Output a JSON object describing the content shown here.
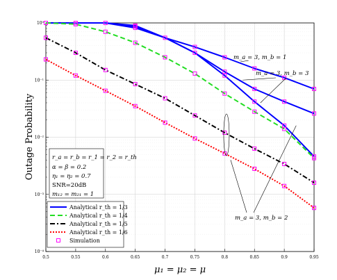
{
  "chart_data": {
    "type": "line",
    "title": "",
    "xlabel": "μ₁ = μ₂ = μ",
    "ylabel": "Outage Probability",
    "yscale": "log",
    "xlim": [
      0.5,
      0.95
    ],
    "ylim": [
      0.0001,
      1
    ],
    "grid": true,
    "legend_position": "bottom-left",
    "x_ticks": [
      "0.5",
      "0.55",
      "0.6",
      "0.65",
      "0.7",
      "0.75",
      "0.8",
      "0.85",
      "0.9",
      "0.95"
    ],
    "y_ticks": [
      "10⁻⁴",
      "10⁻³",
      "10⁻²",
      "10⁻¹",
      "10⁰"
    ],
    "series": [
      {
        "name": "Analytical r_th = 1/3",
        "color": "#0000ff",
        "dash": "solid",
        "curves": [
          {
            "x": [
              0.5,
              0.55,
              0.6,
              0.65,
              0.7,
              0.75,
              0.8,
              0.85,
              0.9,
              0.95
            ],
            "y": [
              1,
              1,
              1,
              0.9,
              0.55,
              0.38,
              0.25,
              0.16,
              0.11,
              0.07
            ]
          },
          {
            "x": [
              0.5,
              0.55,
              0.6,
              0.65,
              0.7,
              0.75,
              0.8,
              0.85,
              0.9,
              0.95
            ],
            "y": [
              1,
              1,
              1,
              0.87,
              0.55,
              0.3,
              0.14,
              0.07,
              0.042,
              0.026
            ]
          },
          {
            "x": [
              0.5,
              0.55,
              0.6,
              0.65,
              0.7,
              0.75,
              0.8,
              0.85,
              0.9,
              0.95
            ],
            "y": [
              1,
              1,
              1,
              0.82,
              0.55,
              0.3,
              0.12,
              0.042,
              0.016,
              0.0046
            ]
          }
        ]
      },
      {
        "name": "Analytical r_th = 1/4",
        "color": "#22dd22",
        "dash": "dashed",
        "curves": [
          {
            "x": [
              0.5,
              0.55,
              0.6,
              0.65,
              0.7,
              0.75,
              0.8,
              0.85,
              0.9,
              0.95
            ],
            "y": [
              1,
              0.95,
              0.7,
              0.45,
              0.25,
              0.13,
              0.058,
              0.028,
              0.014,
              0.0043
            ]
          }
        ]
      },
      {
        "name": "Analytical r_th = 1/5",
        "color": "#000000",
        "dash": "dashdot",
        "curves": [
          {
            "x": [
              0.5,
              0.55,
              0.6,
              0.65,
              0.7,
              0.75,
              0.8,
              0.85,
              0.9,
              0.95
            ],
            "y": [
              0.55,
              0.3,
              0.15,
              0.085,
              0.048,
              0.024,
              0.012,
              0.0063,
              0.0034,
              0.0016
            ]
          }
        ]
      },
      {
        "name": "Analytical r_th = 1/6",
        "color": "#ff0000",
        "dash": "dotted",
        "curves": [
          {
            "x": [
              0.5,
              0.55,
              0.6,
              0.65,
              0.7,
              0.75,
              0.8,
              0.85,
              0.9,
              0.95
            ],
            "y": [
              0.23,
              0.12,
              0.065,
              0.035,
              0.018,
              0.0095,
              0.0052,
              0.0028,
              0.0014,
              0.00058
            ]
          }
        ]
      },
      {
        "name": "Simulation",
        "color": "#ff00ff",
        "marker": "square",
        "points": [
          [
            0.5,
            1
          ],
          [
            0.55,
            1
          ],
          [
            0.6,
            1
          ],
          [
            0.65,
            0.9
          ],
          [
            0.65,
            0.87
          ],
          [
            0.65,
            0.82
          ],
          [
            0.7,
            0.55
          ],
          [
            0.75,
            0.38
          ],
          [
            0.75,
            0.3
          ],
          [
            0.8,
            0.25
          ],
          [
            0.8,
            0.14
          ],
          [
            0.8,
            0.12
          ],
          [
            0.85,
            0.16
          ],
          [
            0.85,
            0.07
          ],
          [
            0.85,
            0.042
          ],
          [
            0.9,
            0.11
          ],
          [
            0.9,
            0.042
          ],
          [
            0.9,
            0.016
          ],
          [
            0.95,
            0.07
          ],
          [
            0.95,
            0.026
          ],
          [
            0.95,
            0.0046
          ],
          [
            0.5,
            1
          ],
          [
            0.55,
            0.95
          ],
          [
            0.6,
            0.7
          ],
          [
            0.65,
            0.45
          ],
          [
            0.7,
            0.25
          ],
          [
            0.75,
            0.13
          ],
          [
            0.8,
            0.058
          ],
          [
            0.85,
            0.028
          ],
          [
            0.9,
            0.014
          ],
          [
            0.95,
            0.0043
          ],
          [
            0.5,
            0.55
          ],
          [
            0.55,
            0.3
          ],
          [
            0.6,
            0.15
          ],
          [
            0.65,
            0.085
          ],
          [
            0.7,
            0.048
          ],
          [
            0.75,
            0.024
          ],
          [
            0.8,
            0.012
          ],
          [
            0.85,
            0.0063
          ],
          [
            0.9,
            0.0034
          ],
          [
            0.95,
            0.0016
          ],
          [
            0.5,
            0.23
          ],
          [
            0.55,
            0.12
          ],
          [
            0.6,
            0.065
          ],
          [
            0.65,
            0.035
          ],
          [
            0.7,
            0.018
          ],
          [
            0.75,
            0.0095
          ],
          [
            0.8,
            0.0052
          ],
          [
            0.85,
            0.0028
          ],
          [
            0.9,
            0.0014
          ],
          [
            0.95,
            0.00058
          ]
        ]
      }
    ],
    "legend": [
      {
        "label": "Analytical r_th = 1/3",
        "kind": "line",
        "color": "#0000ff",
        "dash": "solid"
      },
      {
        "label": "Analytical r_th = 1/4",
        "kind": "line",
        "color": "#22dd22",
        "dash": "dashed"
      },
      {
        "label": "Analytical r_th = 1/5",
        "kind": "line",
        "color": "#000000",
        "dash": "dashdot"
      },
      {
        "label": "Analytical r_th = 1/6",
        "kind": "line",
        "color": "#ff0000",
        "dash": "dotted"
      },
      {
        "label": "Simulation",
        "kind": "marker",
        "color": "#ff00ff"
      }
    ],
    "parameter_box": [
      "r_a = r_b = r_1 = r_2 = r_th",
      "α = β = 0.2",
      "η₁ = η₂ = 0.7",
      "SNR=20dB",
      "m₁₂ = m₂₁ = 1"
    ],
    "annotations": [
      {
        "text": "m_a = 3, m_b = 1",
        "points_to": [
          0.84,
          0.22
        ]
      },
      {
        "text": "m_a = 3, m_b = 3",
        "points_to": [
          0.83,
          0.1
        ]
      },
      {
        "text": "m_a = 3, m_b = 2",
        "points_to": [
          0.81,
          0.011
        ]
      }
    ]
  }
}
